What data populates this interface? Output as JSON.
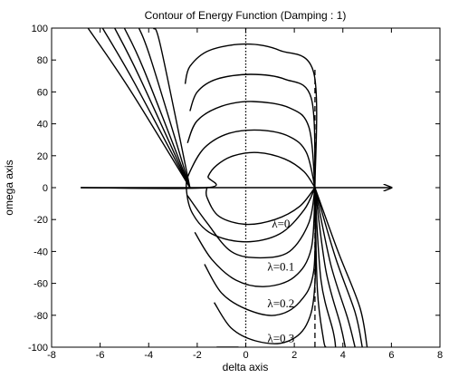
{
  "chart_data": {
    "type": "line",
    "title": "Contour of Energy Function (Damping : 1)",
    "xlabel": "delta axis",
    "ylabel": "omega axis",
    "xlim": [
      -8,
      8
    ],
    "ylim": [
      -100,
      100
    ],
    "xticks": [
      -8,
      -6,
      -4,
      -2,
      0,
      2,
      4,
      6,
      8
    ],
    "yticks": [
      -100,
      -80,
      -60,
      -40,
      -20,
      0,
      20,
      40,
      60,
      80,
      100
    ],
    "grid": false,
    "annotations": [
      {
        "text": "λ=0",
        "x": 1.45,
        "y": -25
      },
      {
        "text": "λ=0.1",
        "x": 1.45,
        "y": -52
      },
      {
        "text": "λ=0.2",
        "x": 1.45,
        "y": -75
      },
      {
        "text": "λ=0.3",
        "x": 1.45,
        "y": -97
      }
    ],
    "reference_lines": [
      {
        "orientation": "vertical",
        "x": 0,
        "y_range": [
          -100,
          100
        ],
        "style": "dotted"
      },
      {
        "orientation": "vertical",
        "x": 2.85,
        "y_range": [
          -100,
          75
        ],
        "style": "dashed"
      },
      {
        "orientation": "horizontal",
        "y": 0,
        "x_range": [
          -6.8,
          6
        ],
        "style": "arrow"
      }
    ],
    "series": [
      {
        "points": [
          [
            2.85,
            0
          ],
          [
            2.4,
            10
          ],
          [
            1.6,
            18
          ],
          [
            0.5,
            22
          ],
          [
            -0.5,
            20
          ],
          [
            -1.2,
            14
          ],
          [
            -1.55,
            7
          ],
          [
            -1.6,
            0
          ],
          [
            -6.8,
            0
          ]
        ]
      },
      {
        "points": [
          [
            2.85,
            0
          ],
          [
            2.2,
            -12
          ],
          [
            1.2,
            -20
          ],
          [
            0,
            -23
          ],
          [
            -1.1,
            -18
          ],
          [
            -1.6,
            -6
          ],
          [
            -1.6,
            0
          ]
        ]
      },
      {
        "points": [
          [
            2.85,
            0
          ],
          [
            2.5,
            22
          ],
          [
            1.8,
            32
          ],
          [
            0.6,
            36
          ],
          [
            -0.7,
            34
          ],
          [
            -1.7,
            25
          ],
          [
            -2.3,
            10
          ],
          [
            -2.45,
            0
          ],
          [
            -2.2,
            -16
          ],
          [
            -1.4,
            -29
          ],
          [
            0,
            -34
          ],
          [
            1.4,
            -29
          ],
          [
            2.4,
            -14
          ],
          [
            2.85,
            0
          ]
        ]
      },
      {
        "points": [
          [
            2.85,
            0
          ],
          [
            2.6,
            38
          ],
          [
            1.8,
            50
          ],
          [
            0.3,
            54
          ],
          [
            -1.0,
            51
          ],
          [
            -2.0,
            42
          ],
          [
            -2.4,
            28
          ]
        ]
      },
      {
        "points": [
          [
            2.85,
            0
          ],
          [
            2.7,
            56
          ],
          [
            1.6,
            68
          ],
          [
            0.2,
            71
          ],
          [
            -1.2,
            68
          ],
          [
            -2.0,
            60
          ],
          [
            -2.3,
            48
          ]
        ]
      },
      {
        "points": [
          [
            2.85,
            0
          ],
          [
            2.8,
            72
          ],
          [
            1.4,
            86
          ],
          [
            0,
            90
          ],
          [
            -1.5,
            86
          ],
          [
            -2.3,
            76
          ],
          [
            -2.5,
            65
          ]
        ]
      },
      {
        "points": [
          [
            -2.4,
            -5
          ],
          [
            -1.6,
            -22
          ],
          [
            -0.6,
            -40
          ],
          [
            0.6,
            -44
          ],
          [
            1.8,
            -40
          ],
          [
            2.6,
            -22
          ],
          [
            2.85,
            0
          ]
        ]
      },
      {
        "points": [
          [
            -2.1,
            -28
          ],
          [
            -1.4,
            -45
          ],
          [
            -0.4,
            -58
          ],
          [
            0.8,
            -62
          ],
          [
            2.0,
            -56
          ],
          [
            2.7,
            -38
          ],
          [
            2.85,
            0
          ]
        ]
      },
      {
        "points": [
          [
            -1.7,
            -48
          ],
          [
            -1.0,
            -66
          ],
          [
            0,
            -76
          ],
          [
            1.2,
            -80
          ],
          [
            2.2,
            -72
          ],
          [
            2.8,
            -52
          ],
          [
            2.85,
            0
          ]
        ]
      },
      {
        "points": [
          [
            -1.3,
            -72
          ],
          [
            -0.6,
            -88
          ],
          [
            0.4,
            -96
          ],
          [
            1.6,
            -97
          ],
          [
            2.5,
            -86
          ],
          [
            2.85,
            -60
          ],
          [
            2.85,
            0
          ]
        ]
      },
      {
        "points": [
          [
            -1.2,
            -100
          ],
          [
            -0.3,
            -100
          ]
        ]
      },
      {
        "points": [
          [
            -2.3,
            0
          ],
          [
            -4.8,
            62
          ],
          [
            -6.5,
            100
          ]
        ]
      },
      {
        "points": [
          [
            -2.3,
            0
          ],
          [
            -4.6,
            66
          ],
          [
            -5.9,
            100
          ]
        ]
      },
      {
        "points": [
          [
            -2.3,
            0
          ],
          [
            -4.4,
            70
          ],
          [
            -5.4,
            100
          ]
        ]
      },
      {
        "points": [
          [
            -2.3,
            0
          ],
          [
            -4.2,
            74
          ],
          [
            -5.0,
            100
          ]
        ]
      },
      {
        "points": [
          [
            -2.3,
            0
          ],
          [
            -3.9,
            80
          ],
          [
            -4.4,
            100
          ]
        ]
      },
      {
        "points": [
          [
            -2.3,
            0
          ],
          [
            -3.5,
            88
          ],
          [
            -3.8,
            100
          ]
        ]
      },
      {
        "points": [
          [
            2.85,
            0
          ],
          [
            3.8,
            -40
          ],
          [
            4.7,
            -75
          ],
          [
            5.0,
            -100
          ]
        ]
      },
      {
        "points": [
          [
            2.85,
            0
          ],
          [
            3.7,
            -44
          ],
          [
            4.5,
            -78
          ],
          [
            4.8,
            -100
          ]
        ]
      },
      {
        "points": [
          [
            2.85,
            0
          ],
          [
            3.5,
            -48
          ],
          [
            4.2,
            -82
          ],
          [
            4.5,
            -100
          ]
        ]
      },
      {
        "points": [
          [
            2.85,
            0
          ],
          [
            3.3,
            -52
          ],
          [
            3.9,
            -86
          ],
          [
            4.1,
            -100
          ]
        ]
      },
      {
        "points": [
          [
            2.85,
            0
          ],
          [
            3.1,
            -58
          ],
          [
            3.6,
            -90
          ],
          [
            3.7,
            -100
          ]
        ]
      },
      {
        "points": [
          [
            2.85,
            0
          ],
          [
            2.95,
            -64
          ],
          [
            3.2,
            -95
          ],
          [
            3.3,
            -100
          ]
        ]
      }
    ]
  }
}
